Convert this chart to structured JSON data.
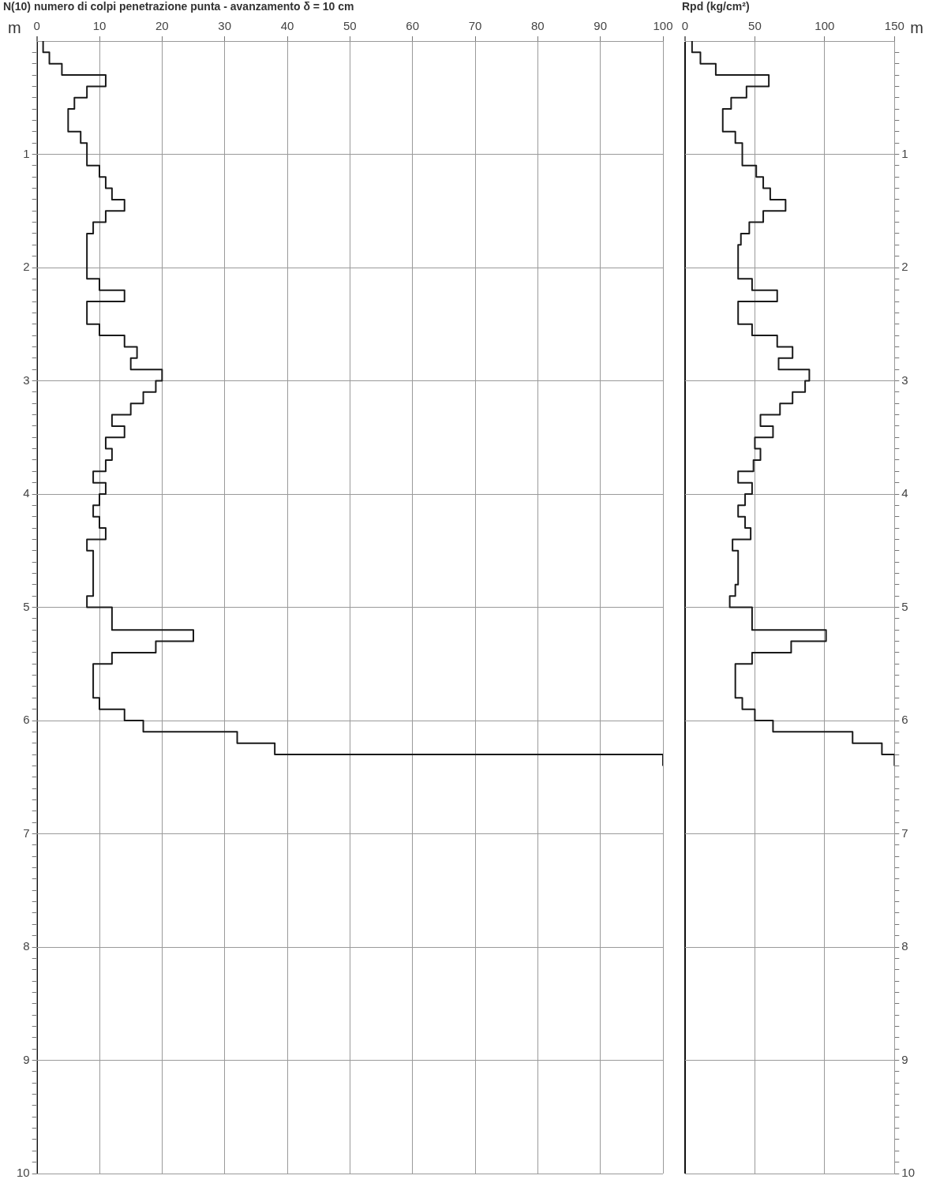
{
  "chart_data": [
    {
      "type": "step",
      "orientation": "horizontal",
      "xlabel": "N(10) numero di colpi penetrazione punta - avanzamento δ = 10 cm",
      "ylabel": "m",
      "marker": "none",
      "grid": true,
      "legend": false,
      "xlim": [
        0,
        100
      ],
      "xticks": [
        0,
        10,
        20,
        30,
        40,
        50,
        60,
        70,
        80,
        90,
        100
      ],
      "ylim": [
        10,
        0
      ],
      "yticks": [
        {
          "value": 0.1,
          "label": null
        },
        {
          "value": 0.2,
          "label": null
        },
        {
          "value": 0.3,
          "label": null
        },
        {
          "value": 0.4,
          "label": null
        },
        {
          "value": 0.5,
          "label": null
        },
        {
          "value": 0.6,
          "label": null
        },
        {
          "value": 0.7,
          "label": null
        },
        {
          "value": 0.8,
          "label": null
        },
        {
          "value": 0.9,
          "label": null
        },
        1,
        {
          "value": 1.1,
          "label": null
        },
        {
          "value": 1.2,
          "label": null
        },
        {
          "value": 1.3,
          "label": null
        },
        {
          "value": 1.4,
          "label": null
        },
        {
          "value": 1.5,
          "label": null
        },
        {
          "value": 1.6,
          "label": null
        },
        {
          "value": 1.7,
          "label": null
        },
        {
          "value": 1.8,
          "label": null
        },
        {
          "value": 1.9,
          "label": null
        },
        2,
        {
          "value": 2.1,
          "label": null
        },
        {
          "value": 2.2,
          "label": null
        },
        {
          "value": 2.3,
          "label": null
        },
        {
          "value": 2.4,
          "label": null
        },
        {
          "value": 2.5,
          "label": null
        },
        {
          "value": 2.6,
          "label": null
        },
        {
          "value": 2.7,
          "label": null
        },
        {
          "value": 2.8,
          "label": null
        },
        {
          "value": 2.9,
          "label": null
        },
        3,
        {
          "value": 3.1,
          "label": null
        },
        {
          "value": 3.2,
          "label": null
        },
        {
          "value": 3.3,
          "label": null
        },
        {
          "value": 3.4,
          "label": null
        },
        {
          "value": 3.5,
          "label": null
        },
        {
          "value": 3.6,
          "label": null
        },
        {
          "value": 3.7,
          "label": null
        },
        {
          "value": 3.8,
          "label": null
        },
        {
          "value": 3.9,
          "label": null
        },
        4,
        {
          "value": 4.1,
          "label": null
        },
        {
          "value": 4.2,
          "label": null
        },
        {
          "value": 4.3,
          "label": null
        },
        {
          "value": 4.4,
          "label": null
        },
        {
          "value": 4.5,
          "label": null
        },
        {
          "value": 4.6,
          "label": null
        },
        {
          "value": 4.7,
          "label": null
        },
        {
          "value": 4.8,
          "label": null
        },
        {
          "value": 4.9,
          "label": null
        },
        5,
        {
          "value": 5.1,
          "label": null
        },
        {
          "value": 5.2,
          "label": null
        },
        {
          "value": 5.3,
          "label": null
        },
        {
          "value": 5.4,
          "label": null
        },
        {
          "value": 5.5,
          "label": null
        },
        {
          "value": 5.6,
          "label": null
        },
        {
          "value": 5.7,
          "label": null
        },
        {
          "value": 5.8,
          "label": null
        },
        {
          "value": 5.9,
          "label": null
        },
        6,
        {
          "value": 6.1,
          "label": null
        },
        {
          "value": 6.2,
          "label": null
        },
        {
          "value": 6.3,
          "label": null
        },
        {
          "value": 6.4,
          "label": null
        },
        {
          "value": 6.5,
          "label": null
        },
        {
          "value": 6.6,
          "label": null
        },
        {
          "value": 6.7,
          "label": null
        },
        {
          "value": 6.8,
          "label": null
        },
        {
          "value": 6.9,
          "label": null
        },
        7,
        {
          "value": 7.1,
          "label": null
        },
        {
          "value": 7.2,
          "label": null
        },
        {
          "value": 7.3,
          "label": null
        },
        {
          "value": 7.4,
          "label": null
        },
        {
          "value": 7.5,
          "label": null
        },
        {
          "value": 7.6,
          "label": null
        },
        {
          "value": 7.7,
          "label": null
        },
        {
          "value": 7.8,
          "label": null
        },
        {
          "value": 7.9,
          "label": null
        },
        8,
        {
          "value": 8.1,
          "label": null
        },
        {
          "value": 8.2,
          "label": null
        },
        {
          "value": 8.3,
          "label": null
        },
        {
          "value": 8.4,
          "label": null
        },
        {
          "value": 8.5,
          "label": null
        },
        {
          "value": 8.6,
          "label": null
        },
        {
          "value": 8.7,
          "label": null
        },
        {
          "value": 8.8,
          "label": null
        },
        {
          "value": 8.9,
          "label": null
        },
        9,
        {
          "value": 9.1,
          "label": null
        },
        {
          "value": 9.2,
          "label": null
        },
        {
          "value": 9.3,
          "label": null
        },
        {
          "value": 9.4,
          "label": null
        },
        {
          "value": 9.5,
          "label": null
        },
        {
          "value": 9.6,
          "label": null
        },
        {
          "value": 9.7,
          "label": null
        },
        {
          "value": 9.8,
          "label": null
        },
        {
          "value": 9.9,
          "label": null
        },
        10
      ],
      "series": [
        {
          "color": "#1a1a1a",
          "x": [
            0,
            0.1,
            0.2,
            0.3,
            0.4,
            0.5,
            0.6,
            0.7,
            0.8,
            0.9,
            1,
            1.1,
            1.2,
            1.3,
            1.4,
            1.5,
            1.6,
            1.7,
            1.8,
            1.9,
            2,
            2.1,
            2.2,
            2.3,
            2.4,
            2.5,
            2.6,
            2.7,
            2.8,
            2.9,
            3,
            3.1,
            3.2,
            3.3,
            3.4,
            3.5,
            3.6,
            3.7,
            3.8,
            3.9,
            4,
            4.1,
            4.2,
            4.3,
            4.4,
            4.5,
            4.6,
            4.7,
            4.8,
            4.9,
            5,
            5.1,
            5.2,
            5.3,
            5.4,
            5.5,
            5.6,
            5.7,
            5.8,
            5.9,
            6,
            6.1,
            6.2,
            6.3,
            6.4
          ],
          "values": [
            1,
            2,
            4,
            11,
            8,
            6,
            5,
            5,
            7,
            8,
            8,
            10,
            11,
            12,
            14,
            11,
            9,
            8,
            8,
            8,
            8,
            10,
            14,
            8,
            8,
            10,
            14,
            16,
            15,
            20,
            19,
            17,
            15,
            12,
            14,
            11,
            12,
            11,
            9,
            11,
            10,
            9,
            10,
            11,
            8,
            9,
            9,
            9,
            9,
            8,
            12,
            12,
            25,
            19,
            12,
            9,
            9,
            9,
            10,
            14,
            17,
            32,
            38,
            100,
            100
          ]
        }
      ]
    },
    {
      "type": "step",
      "orientation": "horizontal",
      "xlabel": "Rpd (kg/cm²)",
      "ylabel": "m",
      "marker": "none",
      "grid": true,
      "legend": false,
      "xlim": [
        0,
        150
      ],
      "xticks": [
        0,
        50,
        100,
        150
      ],
      "ylim": [
        10,
        0
      ],
      "yticks": [
        {
          "value": 0.1,
          "label": null
        },
        {
          "value": 0.2,
          "label": null
        },
        {
          "value": 0.3,
          "label": null
        },
        {
          "value": 0.4,
          "label": null
        },
        {
          "value": 0.5,
          "label": null
        },
        {
          "value": 0.6,
          "label": null
        },
        {
          "value": 0.7,
          "label": null
        },
        {
          "value": 0.8,
          "label": null
        },
        {
          "value": 0.9,
          "label": null
        },
        1,
        {
          "value": 1.1,
          "label": null
        },
        {
          "value": 1.2,
          "label": null
        },
        {
          "value": 1.3,
          "label": null
        },
        {
          "value": 1.4,
          "label": null
        },
        {
          "value": 1.5,
          "label": null
        },
        {
          "value": 1.6,
          "label": null
        },
        {
          "value": 1.7,
          "label": null
        },
        {
          "value": 1.8,
          "label": null
        },
        {
          "value": 1.9,
          "label": null
        },
        2,
        {
          "value": 2.1,
          "label": null
        },
        {
          "value": 2.2,
          "label": null
        },
        {
          "value": 2.3,
          "label": null
        },
        {
          "value": 2.4,
          "label": null
        },
        {
          "value": 2.5,
          "label": null
        },
        {
          "value": 2.6,
          "label": null
        },
        {
          "value": 2.7,
          "label": null
        },
        {
          "value": 2.8,
          "label": null
        },
        {
          "value": 2.9,
          "label": null
        },
        3,
        {
          "value": 3.1,
          "label": null
        },
        {
          "value": 3.2,
          "label": null
        },
        {
          "value": 3.3,
          "label": null
        },
        {
          "value": 3.4,
          "label": null
        },
        {
          "value": 3.5,
          "label": null
        },
        {
          "value": 3.6,
          "label": null
        },
        {
          "value": 3.7,
          "label": null
        },
        {
          "value": 3.8,
          "label": null
        },
        {
          "value": 3.9,
          "label": null
        },
        4,
        {
          "value": 4.1,
          "label": null
        },
        {
          "value": 4.2,
          "label": null
        },
        {
          "value": 4.3,
          "label": null
        },
        {
          "value": 4.4,
          "label": null
        },
        {
          "value": 4.5,
          "label": null
        },
        {
          "value": 4.6,
          "label": null
        },
        {
          "value": 4.7,
          "label": null
        },
        {
          "value": 4.8,
          "label": null
        },
        {
          "value": 4.9,
          "label": null
        },
        5,
        {
          "value": 5.1,
          "label": null
        },
        {
          "value": 5.2,
          "label": null
        },
        {
          "value": 5.3,
          "label": null
        },
        {
          "value": 5.4,
          "label": null
        },
        {
          "value": 5.5,
          "label": null
        },
        {
          "value": 5.6,
          "label": null
        },
        {
          "value": 5.7,
          "label": null
        },
        {
          "value": 5.8,
          "label": null
        },
        {
          "value": 5.9,
          "label": null
        },
        6,
        {
          "value": 6.1,
          "label": null
        },
        {
          "value": 6.2,
          "label": null
        },
        {
          "value": 6.3,
          "label": null
        },
        {
          "value": 6.4,
          "label": null
        },
        {
          "value": 6.5,
          "label": null
        },
        {
          "value": 6.6,
          "label": null
        },
        {
          "value": 6.7,
          "label": null
        },
        {
          "value": 6.8,
          "label": null
        },
        {
          "value": 6.9,
          "label": null
        },
        7,
        {
          "value": 7.1,
          "label": null
        },
        {
          "value": 7.2,
          "label": null
        },
        {
          "value": 7.3,
          "label": null
        },
        {
          "value": 7.4,
          "label": null
        },
        {
          "value": 7.5,
          "label": null
        },
        {
          "value": 7.6,
          "label": null
        },
        {
          "value": 7.7,
          "label": null
        },
        {
          "value": 7.8,
          "label": null
        },
        {
          "value": 7.9,
          "label": null
        },
        8,
        {
          "value": 8.1,
          "label": null
        },
        {
          "value": 8.2,
          "label": null
        },
        {
          "value": 8.3,
          "label": null
        },
        {
          "value": 8.4,
          "label": null
        },
        {
          "value": 8.5,
          "label": null
        },
        {
          "value": 8.6,
          "label": null
        },
        {
          "value": 8.7,
          "label": null
        },
        {
          "value": 8.8,
          "label": null
        },
        {
          "value": 8.9,
          "label": null
        },
        9,
        {
          "value": 9.1,
          "label": null
        },
        {
          "value": 9.2,
          "label": null
        },
        {
          "value": 9.3,
          "label": null
        },
        {
          "value": 9.4,
          "label": null
        },
        {
          "value": 9.5,
          "label": null
        },
        {
          "value": 9.6,
          "label": null
        },
        {
          "value": 9.7,
          "label": null
        },
        {
          "value": 9.8,
          "label": null
        },
        {
          "value": 9.9,
          "label": null
        },
        10
      ],
      "series": [
        {
          "color": "#1a1a1a",
          "x": [
            0,
            0.1,
            0.2,
            0.3,
            0.4,
            0.5,
            0.6,
            0.7,
            0.8,
            0.9,
            1,
            1.1,
            1.2,
            1.3,
            1.4,
            1.5,
            1.6,
            1.7,
            1.8,
            1.9,
            2,
            2.1,
            2.2,
            2.3,
            2.4,
            2.5,
            2.6,
            2.7,
            2.8,
            2.9,
            3,
            3.1,
            3.2,
            3.3,
            3.4,
            3.5,
            3.6,
            3.7,
            3.8,
            3.9,
            4,
            4.1,
            4.2,
            4.3,
            4.4,
            4.5,
            4.6,
            4.7,
            4.8,
            4.9,
            5,
            5.1,
            5.2,
            5.3,
            5.4,
            5.5,
            5.6,
            5.7,
            5.8,
            5.9,
            6,
            6.1,
            6.2,
            6.3,
            6.4
          ],
          "values": [
            5,
            11,
            22,
            60,
            44,
            33,
            27,
            27,
            36,
            41,
            41,
            51,
            56,
            61,
            72,
            56,
            46,
            40,
            38,
            38,
            38,
            48,
            66,
            38,
            38,
            48,
            66,
            77,
            67,
            89,
            86,
            77,
            68,
            54,
            63,
            50,
            54,
            49,
            38,
            48,
            43,
            38,
            43,
            47,
            34,
            38,
            38,
            38,
            36,
            32,
            48,
            48,
            101,
            76,
            48,
            36,
            36,
            36,
            41,
            50,
            63,
            120,
            141,
            150,
            150
          ]
        }
      ]
    }
  ]
}
